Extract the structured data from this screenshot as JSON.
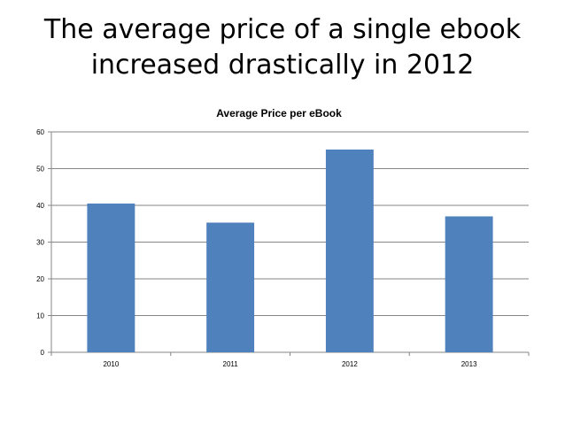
{
  "slide": {
    "title_line1": "The average price of a single ebook",
    "title_line2": "increased drastically in 2012"
  },
  "chart_data": {
    "type": "bar",
    "title": "Average Price per eBook",
    "xlabel": "",
    "ylabel": "",
    "categories": [
      "2010",
      "2011",
      "2012",
      "2013"
    ],
    "values": [
      40.5,
      35.3,
      55.2,
      37.0
    ],
    "ylim": [
      0,
      60
    ],
    "yticks": [
      "0",
      "10",
      "20",
      "30",
      "40",
      "50",
      "60"
    ],
    "grid": true,
    "legend": "none",
    "bar_color": "#4F81BD",
    "grid_color": "#868686"
  }
}
